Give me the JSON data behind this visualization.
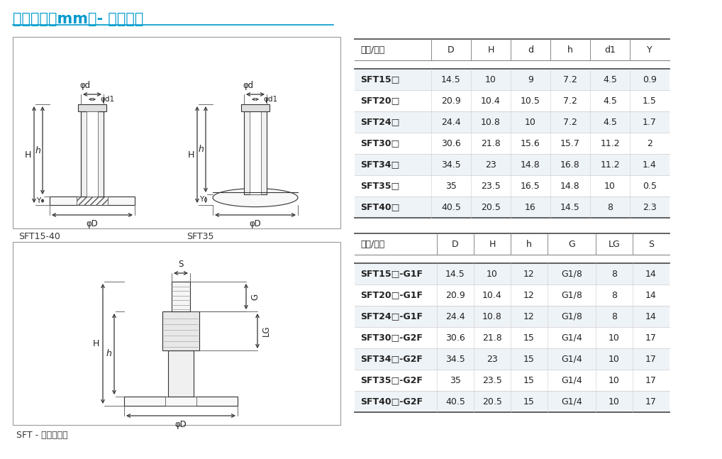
{
  "title": "尺寸规格（mm）- 单独吸盘",
  "title_color": "#0099CC",
  "bg_color": "#ffffff",
  "label_sft1540": "SFT15-40",
  "label_sft35": "SFT35",
  "label_bottom": "SFT - 内螺纹连接",
  "table1_headers": [
    "型号/尺寸",
    "D",
    "H",
    "d",
    "h",
    "d1",
    "Y"
  ],
  "table1_rows": [
    [
      "SFT15□",
      "14.5",
      "10",
      "9",
      "7.2",
      "4.5",
      "0.9"
    ],
    [
      "SFT20□",
      "20.9",
      "10.4",
      "10.5",
      "7.2",
      "4.5",
      "1.5"
    ],
    [
      "SFT24□",
      "24.4",
      "10.8",
      "10",
      "7.2",
      "4.5",
      "1.7"
    ],
    [
      "SFT30□",
      "30.6",
      "21.8",
      "15.6",
      "15.7",
      "11.2",
      "2"
    ],
    [
      "SFT34□",
      "34.5",
      "23",
      "14.8",
      "16.8",
      "11.2",
      "1.4"
    ],
    [
      "SFT35□",
      "35",
      "23.5",
      "16.5",
      "14.8",
      "10",
      "0.5"
    ],
    [
      "SFT40□",
      "40.5",
      "20.5",
      "16",
      "14.5",
      "8",
      "2.3"
    ]
  ],
  "table2_headers": [
    "型号/尺寸",
    "D",
    "H",
    "h",
    "G",
    "LG",
    "S"
  ],
  "table2_rows": [
    [
      "SFT15□-G1F",
      "14.5",
      "10",
      "12",
      "G1/8",
      "8",
      "14"
    ],
    [
      "SFT20□-G1F",
      "20.9",
      "10.4",
      "12",
      "G1/8",
      "8",
      "14"
    ],
    [
      "SFT24□-G1F",
      "24.4",
      "10.8",
      "12",
      "G1/8",
      "8",
      "14"
    ],
    [
      "SFT30□-G2F",
      "30.6",
      "21.8",
      "15",
      "G1/4",
      "10",
      "17"
    ],
    [
      "SFT34□-G2F",
      "34.5",
      "23",
      "15",
      "G1/4",
      "10",
      "17"
    ],
    [
      "SFT35□-G2F",
      "35",
      "23.5",
      "15",
      "G1/4",
      "10",
      "17"
    ],
    [
      "SFT40□-G2F",
      "40.5",
      "20.5",
      "15",
      "G1/4",
      "10",
      "17"
    ]
  ]
}
